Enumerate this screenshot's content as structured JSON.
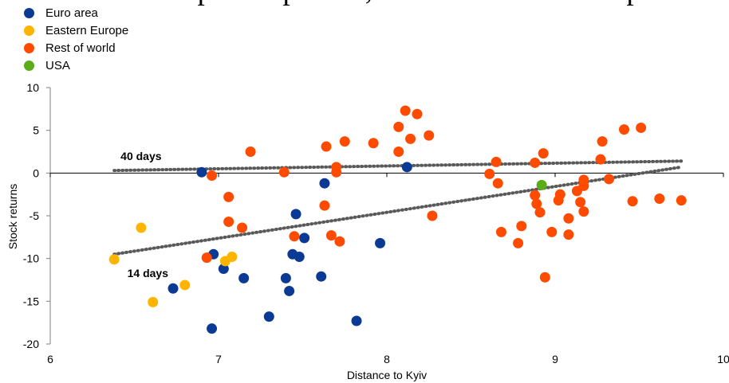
{
  "header": {
    "cut_title": "a Europe and partner, and the Eastern Europe"
  },
  "legend": {
    "items": [
      {
        "label": "Euro area",
        "color": "#0b3a94"
      },
      {
        "label": "Eastern Europe",
        "color": "#ffb400"
      },
      {
        "label": "Rest of world",
        "color": "#ff4b00"
      },
      {
        "label": "USA",
        "color": "#5aac18"
      }
    ]
  },
  "chart_data": {
    "type": "scatter",
    "xlabel": "Distance to Kyiv",
    "ylabel": "Stock returns",
    "xlim": [
      6,
      10
    ],
    "ylim": [
      -20,
      10
    ],
    "x_ticks": [
      6,
      7,
      8,
      9,
      10
    ],
    "y_ticks": [
      10,
      5,
      0,
      -5,
      -10,
      -15,
      -20
    ],
    "grid": false,
    "legend_position": "top-left",
    "series": [
      {
        "name": "Euro area",
        "color": "#0b3a94",
        "points": [
          [
            6.9,
            0.1
          ],
          [
            6.73,
            -13.5
          ],
          [
            6.96,
            -18.2
          ],
          [
            6.97,
            -9.5
          ],
          [
            7.03,
            -11.2
          ],
          [
            7.15,
            -12.3
          ],
          [
            7.3,
            -16.8
          ],
          [
            7.4,
            -12.3
          ],
          [
            7.42,
            -13.8
          ],
          [
            7.44,
            -9.5
          ],
          [
            7.46,
            -4.8
          ],
          [
            7.48,
            -9.8
          ],
          [
            7.51,
            -7.6
          ],
          [
            7.61,
            -12.1
          ],
          [
            7.63,
            -1.2
          ],
          [
            7.82,
            -17.3
          ],
          [
            7.96,
            -8.2
          ],
          [
            8.12,
            0.7
          ]
        ]
      },
      {
        "name": "Eastern Europe",
        "color": "#ffb400",
        "points": [
          [
            6.38,
            -10.1
          ],
          [
            6.54,
            -6.4
          ],
          [
            6.61,
            -15.1
          ],
          [
            6.8,
            -13.1
          ],
          [
            7.04,
            -10.3
          ],
          [
            7.08,
            -9.8
          ]
        ]
      },
      {
        "name": "Rest of world",
        "color": "#ff4b00",
        "points": [
          [
            6.93,
            -9.9
          ],
          [
            6.96,
            -0.3
          ],
          [
            7.06,
            -2.8
          ],
          [
            7.06,
            -5.7
          ],
          [
            7.14,
            -6.4
          ],
          [
            7.19,
            2.5
          ],
          [
            7.39,
            0.1
          ],
          [
            7.45,
            -7.4
          ],
          [
            7.63,
            -3.8
          ],
          [
            7.64,
            3.1
          ],
          [
            7.67,
            -7.3
          ],
          [
            7.7,
            0.7
          ],
          [
            7.7,
            0.1
          ],
          [
            7.72,
            -8.0
          ],
          [
            7.75,
            3.7
          ],
          [
            7.92,
            3.5
          ],
          [
            8.07,
            5.4
          ],
          [
            8.07,
            2.5
          ],
          [
            8.11,
            7.3
          ],
          [
            8.14,
            4.0
          ],
          [
            8.18,
            6.9
          ],
          [
            8.25,
            4.4
          ],
          [
            8.27,
            -5.0
          ],
          [
            8.61,
            -0.1
          ],
          [
            8.65,
            1.3
          ],
          [
            8.66,
            -1.2
          ],
          [
            8.68,
            -6.9
          ],
          [
            8.78,
            -8.2
          ],
          [
            8.8,
            -6.2
          ],
          [
            8.88,
            1.2
          ],
          [
            8.88,
            -2.6
          ],
          [
            8.89,
            -3.6
          ],
          [
            8.91,
            -4.6
          ],
          [
            8.93,
            2.3
          ],
          [
            8.94,
            -12.2
          ],
          [
            8.98,
            -6.9
          ],
          [
            9.02,
            -3.2
          ],
          [
            9.03,
            -2.5
          ],
          [
            9.08,
            -7.2
          ],
          [
            9.08,
            -5.3
          ],
          [
            9.13,
            -2.1
          ],
          [
            9.15,
            -3.4
          ],
          [
            9.17,
            -1.5
          ],
          [
            9.17,
            -4.5
          ],
          [
            9.17,
            -0.8
          ],
          [
            9.27,
            1.6
          ],
          [
            9.28,
            3.7
          ],
          [
            9.32,
            -0.7
          ],
          [
            9.41,
            5.1
          ],
          [
            9.46,
            -3.3
          ],
          [
            9.51,
            5.3
          ],
          [
            9.62,
            -3.0
          ],
          [
            9.75,
            -3.2
          ]
        ]
      },
      {
        "name": "USA",
        "color": "#5aac18",
        "points": [
          [
            8.92,
            -1.4
          ]
        ]
      }
    ],
    "trendlines": [
      {
        "label": "40 days",
        "from": [
          6.38,
          0.3
        ],
        "to": [
          9.75,
          1.4
        ],
        "label_at": [
          6.38,
          2.0
        ]
      },
      {
        "label": "14 days",
        "from": [
          6.38,
          -9.5
        ],
        "to": [
          9.75,
          0.7
        ],
        "label_at": [
          6.42,
          -11.7
        ]
      }
    ]
  }
}
